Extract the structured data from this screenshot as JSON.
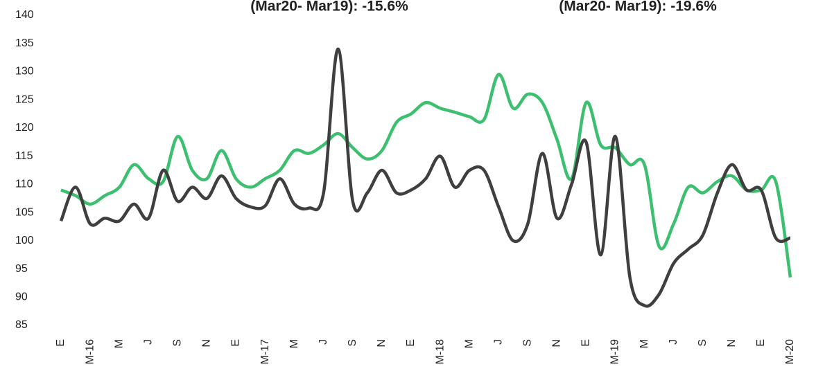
{
  "chart_data": {
    "type": "line",
    "annotations": [
      "(Mar20- Mar19): -15.6%",
      "(Mar20- Mar19): -19.6%"
    ],
    "categories": [
      "E",
      null,
      "M-16",
      null,
      "M",
      null,
      "J",
      null,
      "S",
      null,
      "N",
      null,
      "E",
      null,
      "M-17",
      null,
      "M",
      null,
      "J",
      null,
      "S",
      null,
      "N",
      null,
      "E",
      null,
      "M-18",
      null,
      "M",
      null,
      "J",
      null,
      "S",
      null,
      "N",
      null,
      "E",
      null,
      "M-19",
      null,
      "M",
      null,
      "J",
      null,
      "S",
      null,
      "N",
      null,
      "E",
      null,
      "M-20"
    ],
    "series": [
      {
        "color": "#3cc070",
        "values": [
          109,
          108,
          106.5,
          108,
          109.5,
          113.5,
          111,
          110.5,
          118.5,
          112.5,
          111,
          116,
          111,
          109.5,
          111,
          112.5,
          116,
          115.5,
          117,
          119,
          116.5,
          114.5,
          116,
          121,
          122.5,
          124.5,
          123.5,
          122.8,
          122,
          121.5,
          129.5,
          123.5,
          126,
          124.5,
          118,
          111,
          124.5,
          117,
          116.5,
          113.5,
          113.5,
          99,
          103,
          109.5,
          108.5,
          110.5,
          111.5,
          109,
          109,
          110.5,
          93.5
        ]
      },
      {
        "color": "#3f3f3f",
        "values": [
          103.5,
          109.5,
          103,
          104,
          103.5,
          106.5,
          104,
          112.5,
          107,
          109.5,
          107.5,
          111.5,
          107.5,
          106,
          106.2,
          111,
          106.5,
          105.8,
          108.5,
          134,
          107,
          108.5,
          112.5,
          108.5,
          109,
          111,
          115,
          109.5,
          112.5,
          112.5,
          106,
          100,
          103,
          115.5,
          104,
          110,
          117.5,
          97.5,
          118.5,
          93.5,
          88.5,
          90.5,
          96,
          98.5,
          101,
          108.5,
          113.5,
          109,
          109,
          100.5,
          100.5
        ]
      }
    ],
    "ylim": [
      85,
      140
    ],
    "yticks": [
      85,
      90,
      95,
      100,
      105,
      110,
      115,
      120,
      125,
      130,
      135,
      140
    ]
  }
}
